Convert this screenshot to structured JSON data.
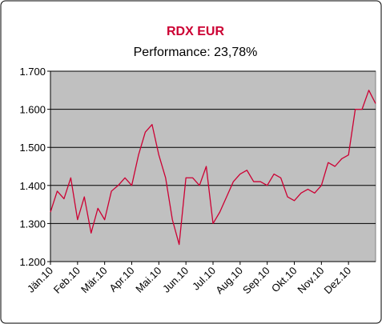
{
  "chart_data": {
    "type": "line",
    "title": "RDX EUR",
    "subtitle": "Performance: 23,78%",
    "x": [
      0,
      0.25,
      0.5,
      0.75,
      1,
      1.25,
      1.5,
      1.75,
      2,
      2.25,
      2.5,
      2.75,
      3,
      3.25,
      3.5,
      3.75,
      4,
      4.25,
      4.5,
      4.75,
      5,
      5.25,
      5.5,
      5.75,
      6,
      6.25,
      6.5,
      6.75,
      7,
      7.25,
      7.5,
      7.75,
      8,
      8.25,
      8.5,
      8.75,
      9,
      9.25,
      9.5,
      9.75,
      10,
      10.25,
      10.5,
      10.75,
      11,
      11.25,
      11.5,
      11.75,
      12
    ],
    "series": [
      {
        "name": "RDX EUR",
        "color": "#cc0033",
        "values": [
          1330,
          1385,
          1365,
          1420,
          1310,
          1370,
          1275,
          1340,
          1310,
          1385,
          1400,
          1420,
          1400,
          1480,
          1540,
          1560,
          1480,
          1420,
          1310,
          1245,
          1420,
          1420,
          1400,
          1450,
          1300,
          1330,
          1370,
          1410,
          1430,
          1440,
          1410,
          1410,
          1400,
          1430,
          1420,
          1370,
          1360,
          1380,
          1390,
          1380,
          1400,
          1460,
          1450,
          1470,
          1480,
          1600,
          1600,
          1650,
          1615
        ]
      }
    ],
    "xlim": [
      0,
      12
    ],
    "xticks": [
      {
        "value": 0,
        "label": "Jän.10"
      },
      {
        "value": 1,
        "label": "Feb.10"
      },
      {
        "value": 2,
        "label": "Mär.10"
      },
      {
        "value": 3,
        "label": "Apr.10"
      },
      {
        "value": 4,
        "label": "Mai.10"
      },
      {
        "value": 5,
        "label": "Jun.10"
      },
      {
        "value": 6,
        "label": "Jul.10"
      },
      {
        "value": 7,
        "label": "Aug.10"
      },
      {
        "value": 8,
        "label": "Sep.10"
      },
      {
        "value": 9,
        "label": "Okt.10"
      },
      {
        "value": 10,
        "label": "Nov.10"
      },
      {
        "value": 11,
        "label": "Dez.10"
      }
    ],
    "ylim": [
      1200,
      1700
    ],
    "yticks": [
      {
        "value": 1200,
        "label": "1.200"
      },
      {
        "value": 1300,
        "label": "1.300"
      },
      {
        "value": 1400,
        "label": "1.400"
      },
      {
        "value": 1500,
        "label": "1.500"
      },
      {
        "value": 1600,
        "label": "1.600"
      },
      {
        "value": 1700,
        "label": "1.700"
      }
    ],
    "grid": true
  }
}
